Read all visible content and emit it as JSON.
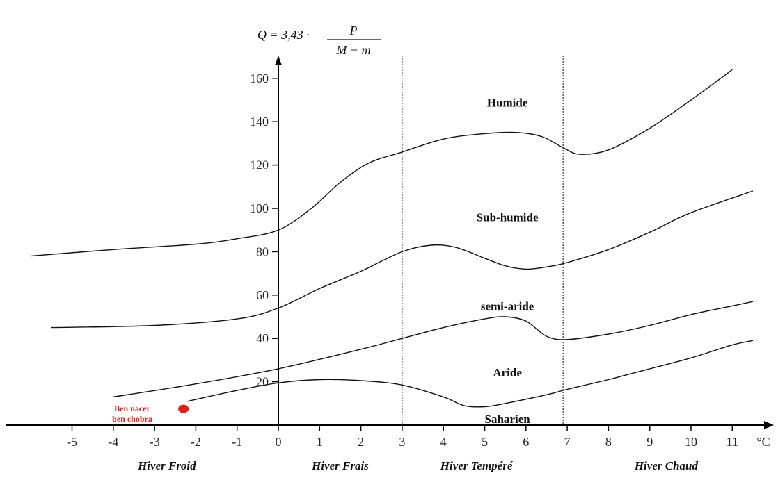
{
  "chart_data": {
    "type": "line",
    "title": "",
    "ylabel_formula": {
      "lhs": "Q = 3,43 ·",
      "numerator": "P",
      "denominator": "M − m"
    },
    "xunit": "°C",
    "xlim": [
      -6,
      12
    ],
    "ylim": [
      0,
      168
    ],
    "x_ticks": [
      -5,
      -4,
      -3,
      -2,
      -1,
      0,
      1,
      2,
      3,
      4,
      5,
      6,
      7,
      8,
      9,
      10,
      11
    ],
    "y_ticks": [
      20,
      40,
      60,
      80,
      100,
      120,
      140,
      160
    ],
    "vertical_dividers": [
      3,
      6.9
    ],
    "series": [
      {
        "points": [
          [
            -6,
            78
          ],
          [
            -4,
            81
          ],
          [
            -2,
            83.5
          ],
          [
            -1,
            86
          ],
          [
            0,
            90
          ],
          [
            0.8,
            100
          ],
          [
            1.5,
            112
          ],
          [
            2.2,
            121
          ],
          [
            3,
            126
          ],
          [
            4,
            132
          ],
          [
            5,
            134.5
          ],
          [
            5.8,
            135
          ],
          [
            6.4,
            133
          ],
          [
            6.9,
            128
          ],
          [
            7.3,
            125
          ],
          [
            8,
            127
          ],
          [
            9,
            137
          ],
          [
            10,
            150
          ],
          [
            11,
            164
          ]
        ]
      },
      {
        "points": [
          [
            -5.5,
            45
          ],
          [
            -3,
            46
          ],
          [
            -1,
            49
          ],
          [
            0,
            54
          ],
          [
            1,
            63
          ],
          [
            2,
            71
          ],
          [
            3,
            80
          ],
          [
            3.7,
            83
          ],
          [
            4.3,
            82
          ],
          [
            5,
            77
          ],
          [
            5.5,
            73.5
          ],
          [
            6,
            72
          ],
          [
            6.5,
            73
          ],
          [
            7,
            75
          ],
          [
            8,
            81
          ],
          [
            9,
            89
          ],
          [
            10,
            98
          ],
          [
            11.5,
            108
          ]
        ]
      },
      {
        "points": [
          [
            -4,
            13
          ],
          [
            -2,
            19
          ],
          [
            0,
            26
          ],
          [
            2,
            35
          ],
          [
            3,
            40
          ],
          [
            4,
            45
          ],
          [
            5,
            49
          ],
          [
            5.5,
            50
          ],
          [
            6,
            48
          ],
          [
            6.5,
            41
          ],
          [
            7,
            39.5
          ],
          [
            8,
            42
          ],
          [
            9,
            46
          ],
          [
            10,
            51
          ],
          [
            11,
            55
          ],
          [
            11.5,
            57
          ]
        ]
      },
      {
        "points": [
          [
            -2.2,
            11
          ],
          [
            -1,
            16
          ],
          [
            0,
            19.5
          ],
          [
            1,
            21
          ],
          [
            2,
            20.5
          ],
          [
            3,
            18.5
          ],
          [
            4,
            13
          ],
          [
            4.5,
            9
          ],
          [
            5,
            8.5
          ],
          [
            5.5,
            10
          ],
          [
            6.5,
            14
          ],
          [
            7,
            16.5
          ],
          [
            8,
            21
          ],
          [
            9,
            26
          ],
          [
            10,
            31
          ],
          [
            11,
            37
          ],
          [
            11.5,
            39
          ]
        ]
      }
    ],
    "region_labels": [
      {
        "text": "Humide",
        "x": 5.55,
        "y": 147
      },
      {
        "text": "Sub-humide",
        "x": 5.55,
        "y": 94
      },
      {
        "text": "semi-aride",
        "x": 5.55,
        "y": 53
      },
      {
        "text": "Aride",
        "x": 5.55,
        "y": 22.5
      },
      {
        "text": "Saharien",
        "x": 5.55,
        "y": 1
      }
    ],
    "season_labels": [
      {
        "text": "Hiver Froid",
        "x": -2.7
      },
      {
        "text": "Hiver Frais",
        "x": 1.5
      },
      {
        "text": "Hiver Tempéré",
        "x": 4.8
      },
      {
        "text": "Hiver Chaud",
        "x": 9.4
      }
    ],
    "markers": [
      {
        "label_lines": [
          "Ben nacer",
          "ben chobra"
        ],
        "x": -2.3,
        "y": 7.5,
        "color": "#e0201b"
      }
    ]
  }
}
